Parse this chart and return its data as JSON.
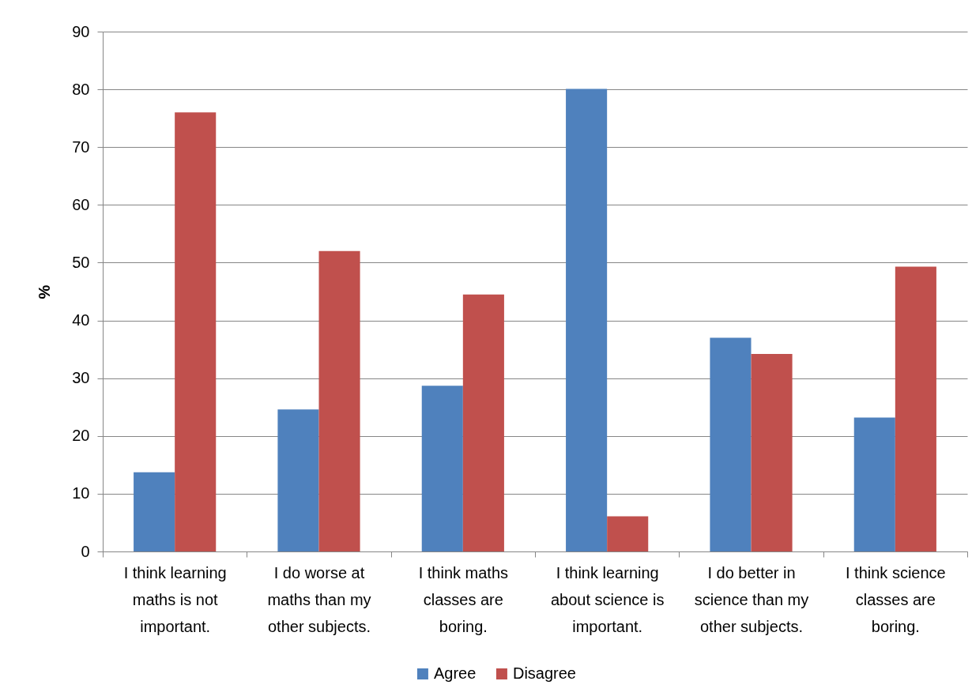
{
  "chart_data": {
    "type": "bar",
    "ylabel": "%",
    "categories": [
      "I think learning maths is not important.",
      "I do worse at maths than my other subjects.",
      "I think maths classes are boring.",
      "I think learning about science is important.",
      "I do better in science than my other subjects.",
      "I think science classes are boring."
    ],
    "series": [
      {
        "name": "Agree",
        "color": "#4f81bd",
        "values": [
          13.7,
          24.6,
          28.7,
          80.1,
          37.0,
          23.2
        ]
      },
      {
        "name": "Disagree",
        "color": "#c0504d",
        "values": [
          76.0,
          52.0,
          44.5,
          6.1,
          34.2,
          49.3
        ]
      }
    ],
    "ylim": [
      0,
      90
    ],
    "yticks": [
      0,
      10,
      20,
      30,
      40,
      50,
      60,
      70,
      80,
      90
    ],
    "grid": "y",
    "legend": "bottom"
  }
}
